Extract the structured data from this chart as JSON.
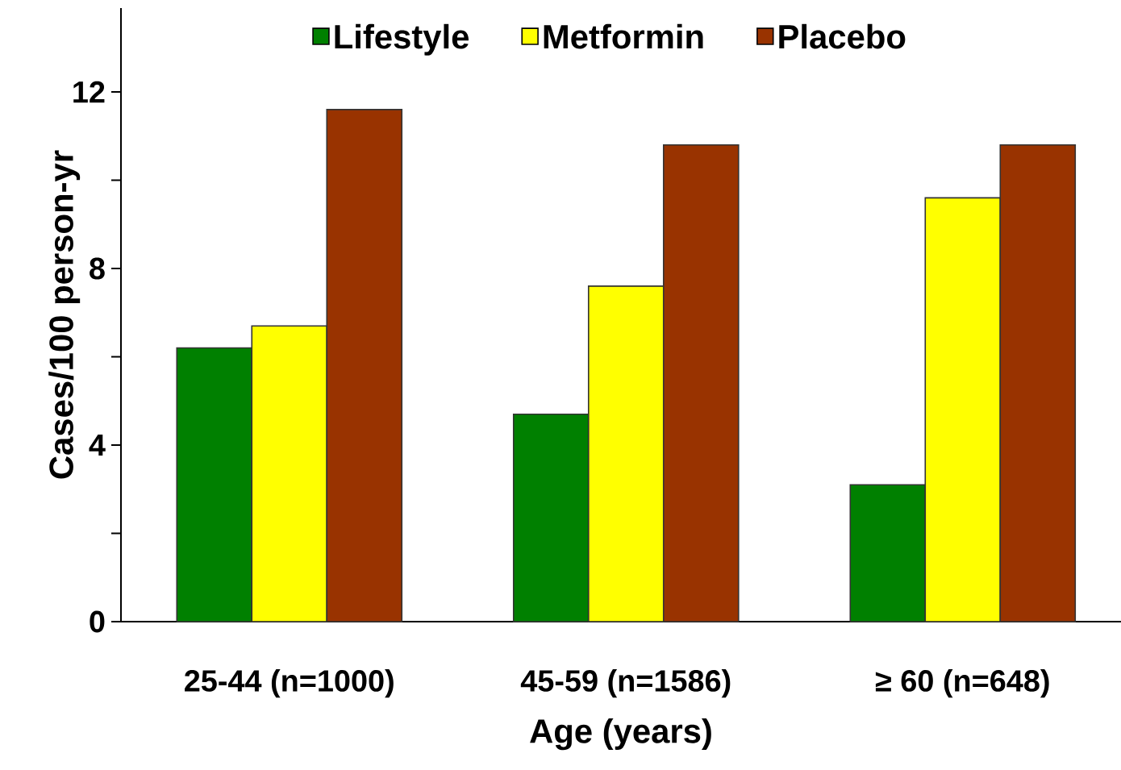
{
  "chart_data": {
    "type": "bar",
    "xlabel": "Age (years)",
    "ylabel": "Cases/100 person-yr",
    "categories": [
      "25-44 (n=1000)",
      "45-59 (n=1586)",
      "≥ 60 (n=648)"
    ],
    "series": [
      {
        "name": "Lifestyle",
        "color": "#008000",
        "values": [
          6.2,
          4.7,
          3.1
        ]
      },
      {
        "name": "Metformin",
        "color": "#ffff00",
        "values": [
          6.7,
          7.6,
          9.6
        ]
      },
      {
        "name": "Placebo",
        "color": "#993300",
        "values": [
          11.6,
          10.8,
          10.8
        ]
      }
    ],
    "ylim": [
      0,
      13.9
    ],
    "yticks": [
      0,
      {
        "value": 2,
        "label": null
      },
      4,
      {
        "value": 6,
        "label": null
      },
      8,
      {
        "value": 10,
        "label": null
      },
      12
    ],
    "legend": "top"
  }
}
